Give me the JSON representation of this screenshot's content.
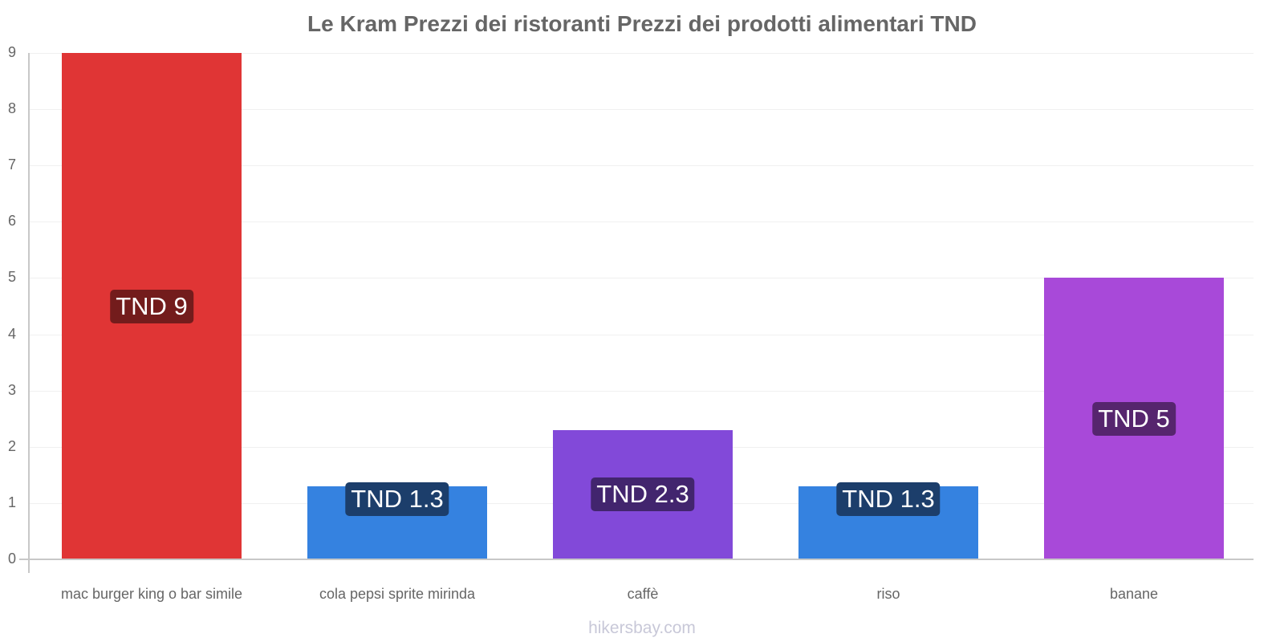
{
  "chart_data": {
    "type": "bar",
    "title": "Le Kram Prezzi dei ristoranti Prezzi dei prodotti alimentari TND",
    "categories": [
      "mac burger king o bar simile",
      "cola pepsi sprite mirinda",
      "caffè",
      "riso",
      "banane"
    ],
    "values": [
      9,
      1.3,
      2.3,
      1.3,
      5
    ],
    "value_labels": [
      "TND 9",
      "TND 1.3",
      "TND 2.3",
      "TND 1.3",
      "TND 5"
    ],
    "colors": [
      "#e03535",
      "#3582e0",
      "#8249d9",
      "#3582e0",
      "#a849d9"
    ],
    "label_bg": [
      "#731c1c",
      "#1c3e6b",
      "#42256e",
      "#1c3e6b",
      "#56256e"
    ],
    "xlabel": "",
    "ylabel": "",
    "ylim": [
      0,
      9
    ],
    "yticks": [
      "0",
      "1",
      "2",
      "3",
      "4",
      "5",
      "6",
      "7",
      "8",
      "9"
    ],
    "grid": true,
    "legend": "none"
  },
  "watermark": "hikersbay.com"
}
